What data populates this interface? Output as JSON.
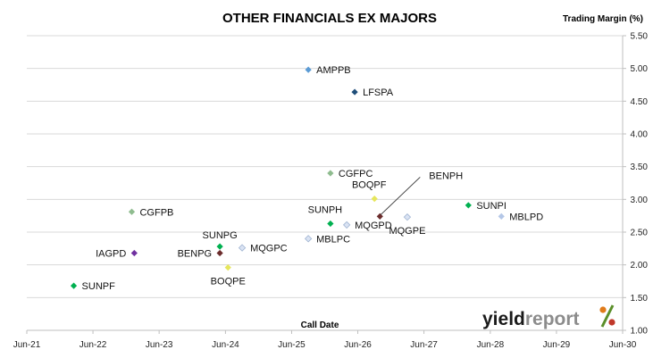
{
  "chart_data": {
    "type": "scatter",
    "title": "OTHER FINANCIALS EX MAJORS",
    "xlabel": "Call Date",
    "ylabel": "Trading Margin (%)",
    "x_axis": {
      "scale": "date",
      "range": [
        "2021-06-01",
        "2030-06-01"
      ],
      "tick_labels": [
        "Jun-21",
        "Jun-22",
        "Jun-23",
        "Jun-24",
        "Jun-25",
        "Jun-26",
        "Jun-27",
        "Jun-28",
        "Jun-29",
        "Jun-30"
      ],
      "tick_values": [
        "2021-06-01",
        "2022-06-01",
        "2023-06-01",
        "2024-06-01",
        "2025-06-01",
        "2026-06-01",
        "2027-06-01",
        "2028-06-01",
        "2029-06-01",
        "2030-06-01"
      ]
    },
    "y_axis": {
      "position": "right",
      "range": [
        1.0,
        5.5
      ],
      "tick_labels": [
        "1.00",
        "1.50",
        "2.00",
        "2.50",
        "3.00",
        "3.50",
        "4.00",
        "4.50",
        "5.00",
        "5.50"
      ],
      "tick_values": [
        1.0,
        1.5,
        2.0,
        2.5,
        3.0,
        3.5,
        4.0,
        4.5,
        5.0,
        5.5
      ]
    },
    "grid": "horizontal",
    "legend": "none",
    "points": [
      {
        "label": "AMPPB",
        "x": "2025-09-01",
        "y": 4.98,
        "color": "#5b9bd5",
        "label_pos": "right"
      },
      {
        "label": "LFSPA",
        "x": "2026-05-15",
        "y": 4.64,
        "color": "#1f4e79",
        "label_pos": "right"
      },
      {
        "label": "CGFPC",
        "x": "2026-01-01",
        "y": 3.4,
        "color": "#8fbc8f",
        "label_pos": "right"
      },
      {
        "label": "BOQPF",
        "x": "2026-09-01",
        "y": 3.01,
        "color": "#e6e65c",
        "label_pos": "above-left"
      },
      {
        "label": "BENPH",
        "x": "2026-10-01",
        "y": 2.74,
        "color": "#6b2c2c",
        "label_pos": "leader-upper-right"
      },
      {
        "label": "SUNPI",
        "x": "2028-02-01",
        "y": 2.91,
        "color": "#00b050",
        "label_pos": "right"
      },
      {
        "label": "MBLPD",
        "x": "2028-08-01",
        "y": 2.74,
        "color": "#b4c7e7",
        "label_pos": "right"
      },
      {
        "label": "MQGPE",
        "x": "2027-03-01",
        "y": 2.73,
        "color": "#dae3f3",
        "label_pos": "below"
      },
      {
        "label": "SUNPH",
        "x": "2026-01-01",
        "y": 2.63,
        "color": "#00b050",
        "label_pos": "above-left"
      },
      {
        "label": "MQGPD",
        "x": "2026-04-01",
        "y": 2.61,
        "color": "#dae3f3",
        "label_pos": "right"
      },
      {
        "label": "MBLPC",
        "x": "2025-09-01",
        "y": 2.4,
        "color": "#dae3f3",
        "label_pos": "right"
      },
      {
        "label": "CGFPB",
        "x": "2023-01-01",
        "y": 2.81,
        "color": "#8fbc8f",
        "label_pos": "right"
      },
      {
        "label": "MQGPC",
        "x": "2024-09-01",
        "y": 2.26,
        "color": "#dae3f3",
        "label_pos": "right"
      },
      {
        "label": "SUNPG",
        "x": "2024-05-01",
        "y": 2.28,
        "color": "#00b050",
        "label_pos": "above"
      },
      {
        "label": "BENPG",
        "x": "2024-05-01",
        "y": 2.18,
        "color": "#6b2c2c",
        "label_pos": "left"
      },
      {
        "label": "IAGPD",
        "x": "2023-01-15",
        "y": 2.18,
        "color": "#7030a0",
        "label_pos": "left"
      },
      {
        "label": "BOQPE",
        "x": "2024-06-15",
        "y": 1.96,
        "color": "#e6e65c",
        "label_pos": "below"
      },
      {
        "label": "SUNPF",
        "x": "2022-02-15",
        "y": 1.68,
        "color": "#00b050",
        "label_pos": "right"
      }
    ]
  },
  "branding": {
    "part1": "yield",
    "part2": "report",
    "part3": "%"
  }
}
